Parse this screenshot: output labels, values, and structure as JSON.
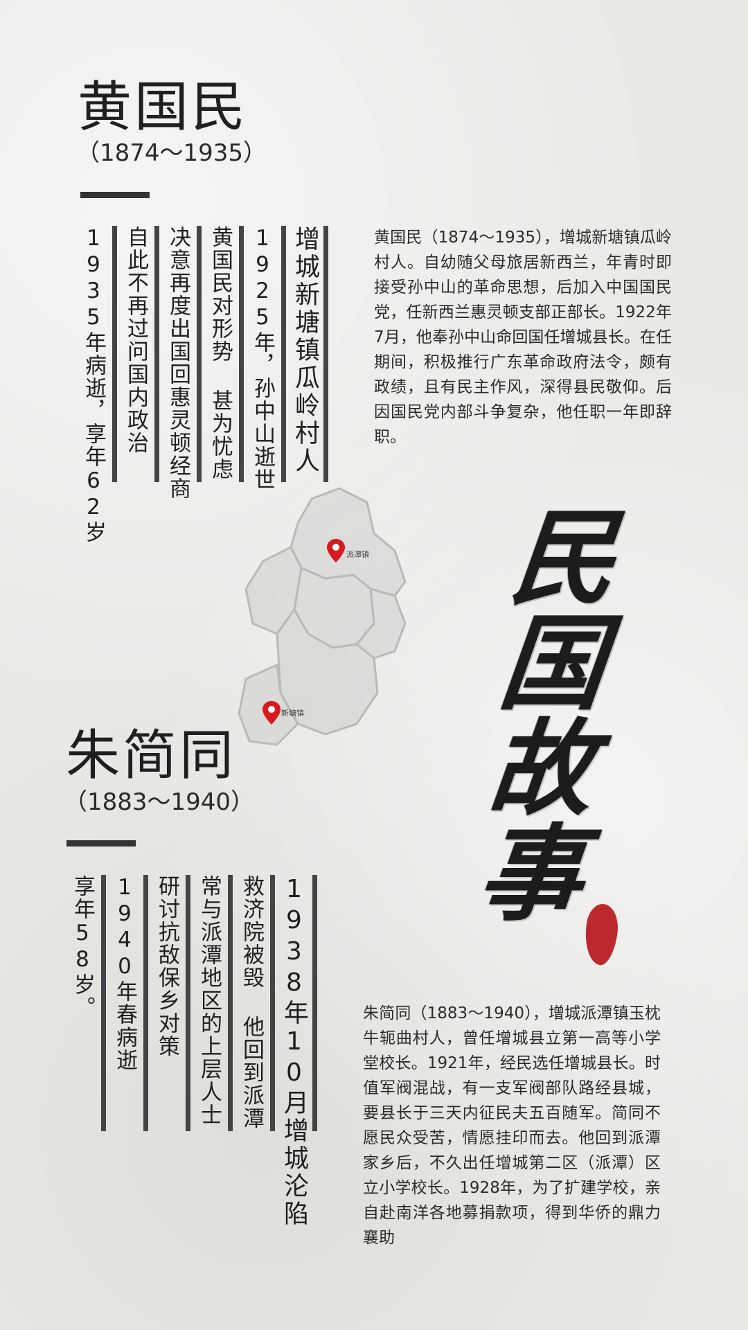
{
  "person1": {
    "name": "黄国民",
    "dates": "（1874～1935）",
    "columns": [
      "增城新塘镇瓜岭村人",
      "1925年，孙中山逝世",
      "黄国民对形势 甚为忧虑",
      "决意再度出国回惠灵顿经商",
      "自此不再过问国内政治",
      "1935年病逝，享年62岁"
    ],
    "bio": "黄国民（1874～1935），增城新塘镇瓜岭村人。自幼随父母旅居新西兰，年青时即接受孙中山的革命思想，后加入中国国民党，任新西兰惠灵顿支部正部长。1922年7月，他奉孙中山命回国任增城县长。在任期间，积极推行广东革命政府法令，颇有政绩，且有民主作风，深得县民敬仰。后因国民党内部斗争复杂，他任职一年即辞职。"
  },
  "person2": {
    "name": "朱简同",
    "dates": "（1883～1940）",
    "columns": [
      "1938年10月增城沦陷",
      "救济院被毁 他回到派潭",
      "常与派潭地区的上层人士",
      "研讨抗敌保乡对策",
      "1940年春病逝",
      "享年58岁。"
    ],
    "bio": "朱简同（1883～1940），增城派潭镇玉枕牛轭曲村人，曾任增城县立第一高等小学堂校长。1921年，经民选任增城县长。时值军阀混战，有一支军阀部队路经县城，要县长于三天内征民夫五百随军。简同不愿民众受苦，情愿挂印而去。他回到派潭家乡后，不久出任增城第二区（派潭）区立小学校长。1928年，为了扩建学校，亲自赴南洋各地募捐款项，得到华侨的鼎力襄助"
  },
  "map": {
    "pins": [
      {
        "label": "派潭镇",
        "color": "#d7191f"
      },
      {
        "label": "新塘镇",
        "color": "#d7191f"
      }
    ]
  },
  "calligraphy": [
    "民",
    "国",
    "故",
    "事"
  ],
  "colors": {
    "seal": "#b8161d",
    "pin": "#d7191f",
    "ink": "#1f1f1f"
  }
}
